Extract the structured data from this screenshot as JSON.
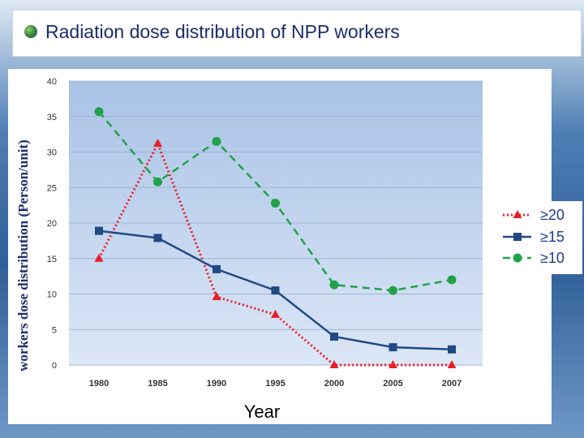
{
  "slide": {
    "title": "Radiation dose distribution of NPP workers"
  },
  "chart_data": {
    "type": "line",
    "title": "",
    "xlabel": "Year",
    "ylabel": "workers dose distribution (Person/unit)",
    "categories": [
      "1980",
      "1985",
      "1990",
      "1995",
      "2000",
      "2005",
      "2007"
    ],
    "ylim": [
      0,
      40
    ],
    "yticks": [
      0,
      5,
      10,
      15,
      20,
      25,
      30,
      35,
      40
    ],
    "grid": true,
    "legend_position": "right",
    "series": [
      {
        "name": "≥20",
        "values": [
          15,
          31.2,
          9.6,
          7.1,
          0,
          0,
          0
        ],
        "color": "#e8202a",
        "dash": "dotted",
        "marker": "triangle"
      },
      {
        "name": "≥15",
        "values": [
          18.9,
          17.9,
          13.5,
          10.5,
          4.0,
          2.5,
          2.2
        ],
        "color": "#214a85",
        "dash": "solid",
        "marker": "square"
      },
      {
        "name": "≥10",
        "values": [
          35.7,
          25.8,
          31.5,
          22.8,
          11.3,
          10.5,
          12.0
        ],
        "color": "#21a14a",
        "dash": "dashed",
        "marker": "circle"
      }
    ]
  }
}
